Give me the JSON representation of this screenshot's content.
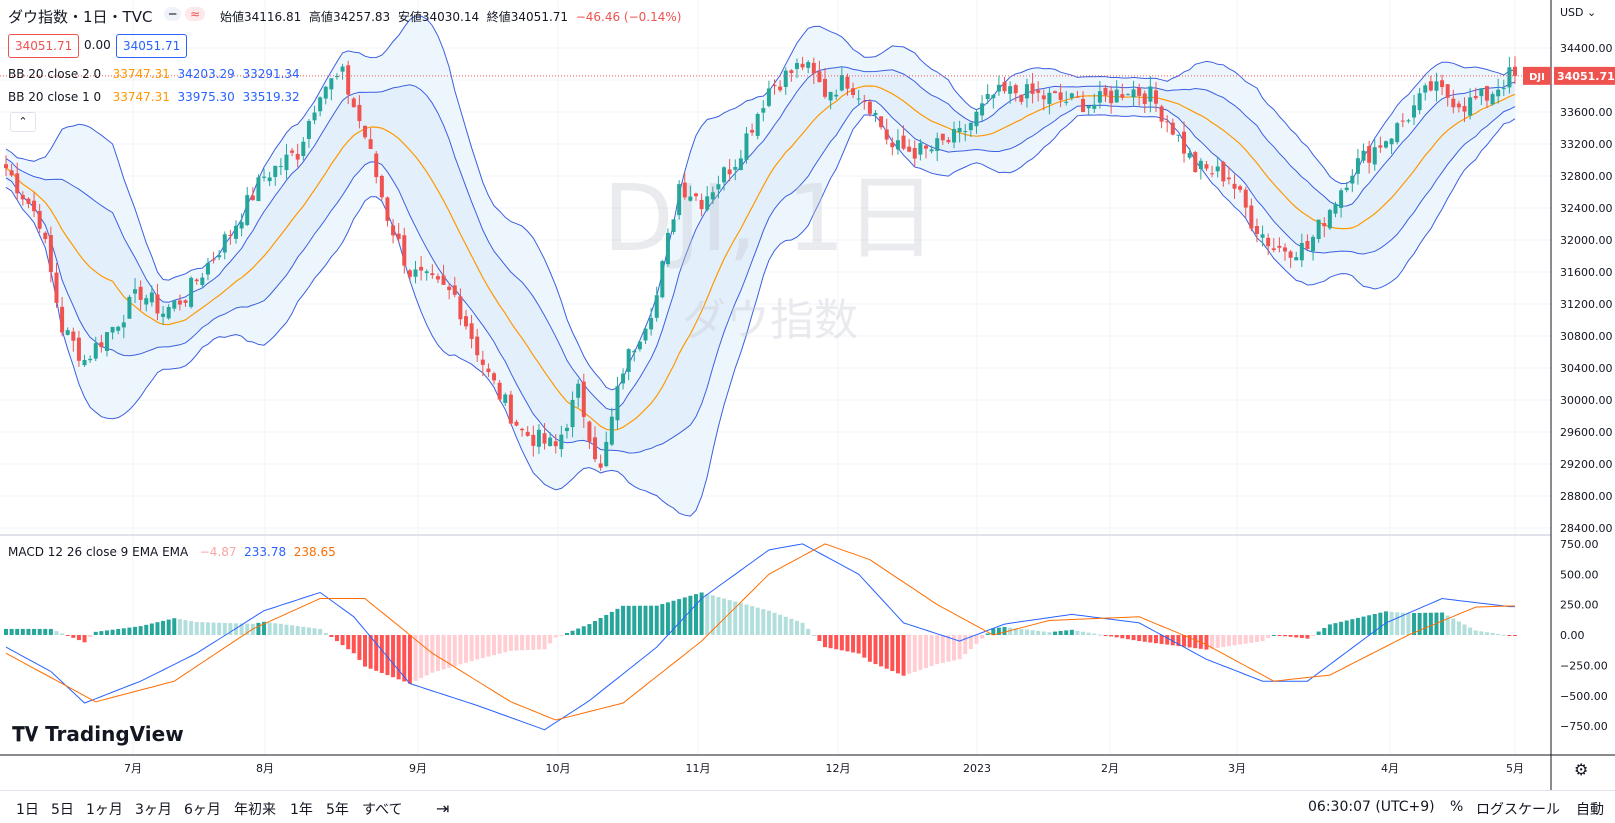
{
  "header": {
    "symbol_title": "ダウ指数・1日・TVC",
    "ohlc": {
      "open_label": "始値",
      "open": "34116.81",
      "high_label": "高値",
      "high": "34257.83",
      "low_label": "安値",
      "low": "34030.14",
      "close_label": "終値",
      "close": "34051.71",
      "change": "−46.46 (−0.14%)"
    },
    "sell_price": "34051.71",
    "spread": "0.00",
    "buy_price": "34051.71"
  },
  "indicators": {
    "bb2": {
      "label": "BB 20 close 2 0",
      "basis": "33747.31",
      "upper": "34203.29",
      "lower": "33291.34"
    },
    "bb1": {
      "label": "BB 20 close 1 0",
      "basis": "33747.31",
      "upper": "33975.30",
      "lower": "33519.32"
    },
    "macd": {
      "label": "MACD 12 26 close 9 EMA EMA",
      "hist": "−4.87",
      "macd": "233.78",
      "signal": "238.65"
    }
  },
  "watermark": {
    "line1": "DJI, 1日",
    "line2": "ダウ指数"
  },
  "currency": "USD",
  "last_price_tag": {
    "symbol": "DJI",
    "price": "34051.71"
  },
  "brand": "TradingView",
  "timeframes": [
    "1日",
    "5日",
    "1ヶ月",
    "3ヶ月",
    "6ヶ月",
    "年初来",
    "1年",
    "5年",
    "すべて"
  ],
  "footer": {
    "time": "06:30:07 (UTC+9)",
    "percent": "%",
    "log": "ログスケール",
    "auto": "自動"
  },
  "colors": {
    "up": "#26a69a",
    "down": "#ef5350",
    "basis": "#ff9800",
    "band": "#3b5fe0",
    "fill": "#e3f2fd"
  },
  "chart_data": {
    "type": "candlestick",
    "x_ticks": [
      "7月",
      "8月",
      "9月",
      "10月",
      "11月",
      "12月",
      "2023",
      "2月",
      "3月",
      "4月",
      "5月"
    ],
    "y_ticks": [
      "34400.00",
      "34000.00",
      "33600.00",
      "33200.00",
      "32800.00",
      "32400.00",
      "32000.00",
      "31600.00",
      "31200.00",
      "30800.00",
      "30400.00",
      "30000.00",
      "29600.00",
      "29200.00",
      "28800.00",
      "28400.00"
    ],
    "macd_ticks": [
      "750.00",
      "500.00",
      "250.00",
      "0.00",
      "−250.00",
      "−500.00",
      "−750.00"
    ],
    "close_path": [
      [
        0,
        32900
      ],
      [
        6,
        32250
      ],
      [
        10,
        30900
      ],
      [
        14,
        30500
      ],
      [
        20,
        31000
      ],
      [
        24,
        31350
      ],
      [
        28,
        31100
      ],
      [
        32,
        31300
      ],
      [
        40,
        32100
      ],
      [
        46,
        32800
      ],
      [
        52,
        33100
      ],
      [
        56,
        33900
      ],
      [
        60,
        34050
      ],
      [
        64,
        33300
      ],
      [
        68,
        32300
      ],
      [
        72,
        31600
      ],
      [
        80,
        31300
      ],
      [
        86,
        30300
      ],
      [
        92,
        29600
      ],
      [
        98,
        29400
      ],
      [
        102,
        30100
      ],
      [
        106,
        29100
      ],
      [
        110,
        30400
      ],
      [
        116,
        31300
      ],
      [
        120,
        32700
      ],
      [
        124,
        32500
      ],
      [
        130,
        33000
      ],
      [
        136,
        33900
      ],
      [
        142,
        34200
      ],
      [
        146,
        33850
      ],
      [
        150,
        34000
      ],
      [
        154,
        33700
      ],
      [
        158,
        33150
      ],
      [
        164,
        33100
      ],
      [
        170,
        33300
      ],
      [
        176,
        33800
      ],
      [
        180,
        33850
      ],
      [
        188,
        33750
      ],
      [
        194,
        33700
      ],
      [
        200,
        33900
      ],
      [
        204,
        33800
      ],
      [
        208,
        33400
      ],
      [
        212,
        32900
      ],
      [
        218,
        32800
      ],
      [
        222,
        32250
      ],
      [
        226,
        31900
      ],
      [
        232,
        31900
      ],
      [
        236,
        32400
      ],
      [
        240,
        32900
      ],
      [
        248,
        33400
      ],
      [
        254,
        33900
      ],
      [
        260,
        33700
      ],
      [
        264,
        33800
      ],
      [
        268,
        34050
      ]
    ],
    "macd_path": [
      [
        0,
        -100
      ],
      [
        8,
        -300
      ],
      [
        14,
        -560
      ],
      [
        24,
        -380
      ],
      [
        34,
        -150
      ],
      [
        46,
        200
      ],
      [
        56,
        350
      ],
      [
        62,
        150
      ],
      [
        72,
        -400
      ],
      [
        84,
        -580
      ],
      [
        96,
        -780
      ],
      [
        104,
        -540
      ],
      [
        116,
        -100
      ],
      [
        124,
        300
      ],
      [
        136,
        700
      ],
      [
        142,
        750
      ],
      [
        152,
        500
      ],
      [
        160,
        100
      ],
      [
        170,
        -50
      ],
      [
        178,
        90
      ],
      [
        190,
        170
      ],
      [
        202,
        100
      ],
      [
        214,
        -200
      ],
      [
        224,
        -380
      ],
      [
        232,
        -380
      ],
      [
        246,
        100
      ],
      [
        256,
        300
      ],
      [
        268,
        234
      ]
    ],
    "signal_path": [
      [
        0,
        -150
      ],
      [
        10,
        -400
      ],
      [
        16,
        -550
      ],
      [
        30,
        -380
      ],
      [
        44,
        50
      ],
      [
        56,
        300
      ],
      [
        64,
        300
      ],
      [
        76,
        -150
      ],
      [
        90,
        -550
      ],
      [
        98,
        -700
      ],
      [
        110,
        -560
      ],
      [
        124,
        -50
      ],
      [
        136,
        500
      ],
      [
        146,
        750
      ],
      [
        154,
        620
      ],
      [
        166,
        250
      ],
      [
        176,
        0
      ],
      [
        186,
        120
      ],
      [
        202,
        150
      ],
      [
        214,
        -80
      ],
      [
        226,
        -380
      ],
      [
        236,
        -330
      ],
      [
        250,
        0
      ],
      [
        262,
        230
      ],
      [
        268,
        239
      ]
    ]
  }
}
